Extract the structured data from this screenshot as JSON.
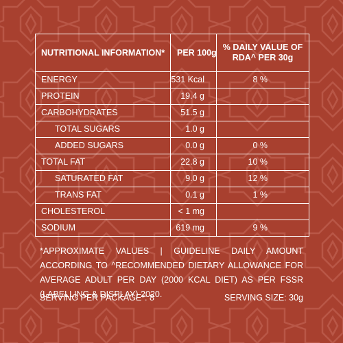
{
  "colors": {
    "background": "#a8402f",
    "pattern": "#c6695a",
    "text": "#ffffff"
  },
  "table": {
    "headers": {
      "nutrient": "NUTRITIONAL INFORMATION*",
      "per100": "PER 100g",
      "rda_line1": "% DAILY VALUE OF",
      "rda_line2": "RDA^ PER 30g"
    },
    "rows": [
      {
        "name": "ENERGY",
        "per100": "531 Kcal",
        "rda": "8 %",
        "indent": false
      },
      {
        "name": "PROTEIN",
        "per100": "19.4 g",
        "rda": "",
        "indent": false
      },
      {
        "name": "CARBOHYDRATES",
        "per100": "51.5 g",
        "rda": "",
        "indent": false
      },
      {
        "name": "TOTAL SUGARS",
        "per100": "1.0 g",
        "rda": "",
        "indent": true
      },
      {
        "name": "ADDED SUGARS",
        "per100": "0.0 g",
        "rda": "0 %",
        "indent": true
      },
      {
        "name": "TOTAL FAT",
        "per100": "22.8 g",
        "rda": "10 %",
        "indent": false
      },
      {
        "name": "SATURATED FAT",
        "per100": "9.0 g",
        "rda": "12 %",
        "indent": true
      },
      {
        "name": "TRANS FAT",
        "per100": "0.1 g",
        "rda": "1 %",
        "indent": true
      },
      {
        "name": "CHOLESTEROL",
        "per100": "< 1 mg",
        "rda": "",
        "indent": false
      },
      {
        "name": "SODIUM",
        "per100": "619 mg",
        "rda": "9 %",
        "indent": false
      }
    ]
  },
  "note": "*APPROXIMATE VALUES | GUIDELINE DAILY AMOUNT ACCORDING TO ^RECOMMENDED DIETARY ALLOWANCE FOR AVERAGE ADULT PER DAY (2000 KCAL DIET) AS PER FSSR (LABELLING & DISPLAY) 2020.",
  "footer": {
    "serving_per_package": "SERVING PER PACKAGE*: 8",
    "serving_size": "SERVING SIZE: 30g"
  }
}
